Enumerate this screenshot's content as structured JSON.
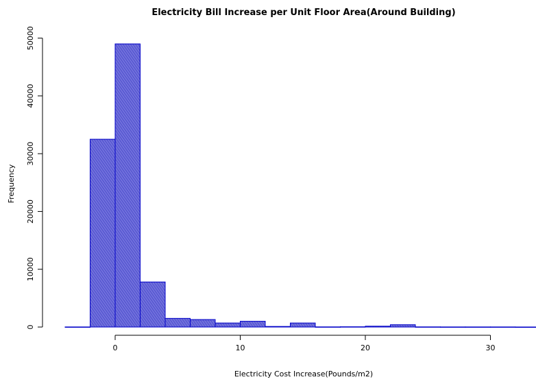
{
  "chart_data": {
    "type": "bar",
    "title": "Electricity Bill Increase per Unit Floor Area(Around Building)",
    "xlabel": "Electricity Cost Increase(Pounds/m2)",
    "ylabel": "Frequency",
    "bin_edges": [
      -4,
      -2,
      0,
      2,
      4,
      6,
      8,
      10,
      12,
      14,
      16,
      18,
      20,
      22,
      24,
      26,
      28,
      30,
      32,
      34
    ],
    "values": [
      20,
      32500,
      49000,
      7800,
      1500,
      1300,
      700,
      1000,
      100,
      700,
      30,
      50,
      150,
      400,
      30,
      20,
      20,
      20,
      10
    ],
    "xlim": [
      -4,
      33
    ],
    "ylim": [
      0,
      52000
    ],
    "x_ticks": [
      0,
      10,
      20,
      30
    ],
    "y_ticks": [
      0,
      10000,
      20000,
      30000,
      40000,
      50000
    ],
    "grid": false,
    "colors": {
      "bar_fill": "#5a5ad2",
      "bar_stroke": "#0000c8",
      "hatch": "#8c8ce8",
      "axis": "#000000"
    }
  }
}
